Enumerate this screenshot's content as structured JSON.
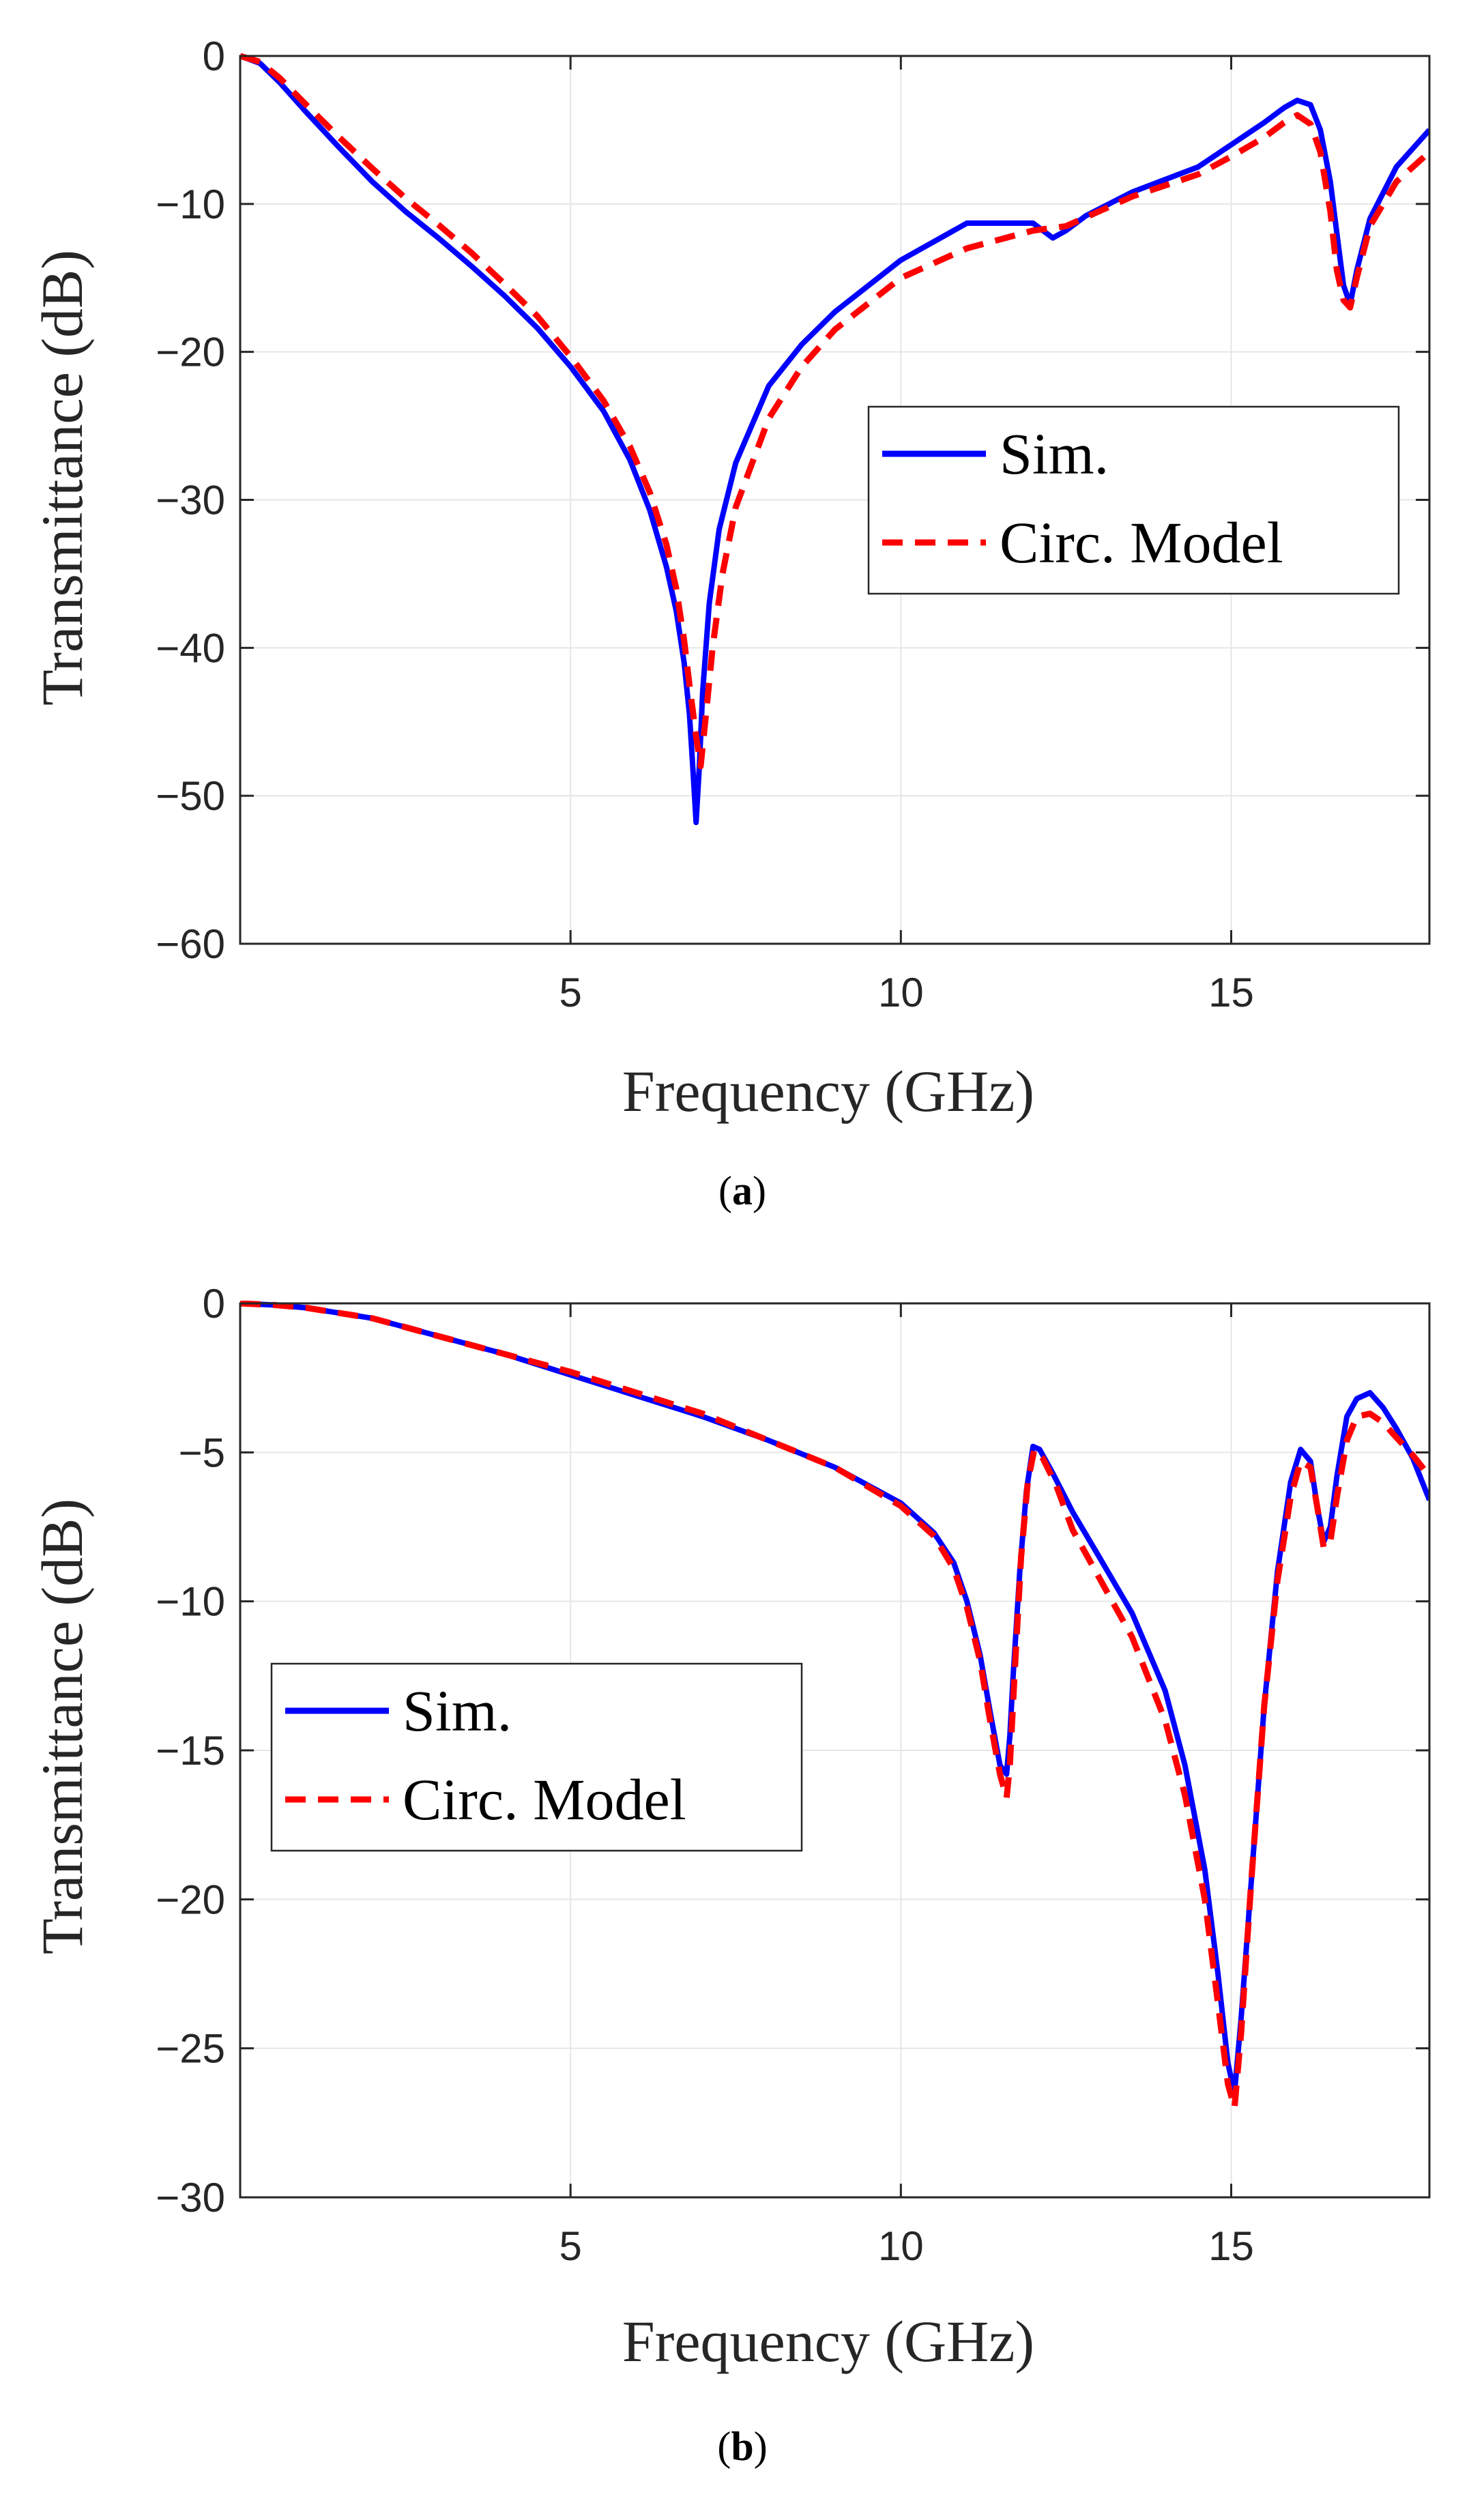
{
  "colors": {
    "sim": "#0000ff",
    "model": "#ff0000",
    "grid": "#e6e6e6",
    "axis": "#262626"
  },
  "chart_data": [
    {
      "type": "line",
      "panel": "(a)",
      "panel_letter": "a",
      "xlabel": "Frequency (GHz)",
      "ylabel": "Transmittance (dB)",
      "xlim": [
        0,
        18
      ],
      "ylim": [
        -60,
        0
      ],
      "xticks": [
        5,
        10,
        15
      ],
      "yticks": [
        0,
        -10,
        -20,
        -30,
        -40,
        -50,
        -60
      ],
      "grid": true,
      "legend_position": "center-right",
      "series": [
        {
          "name": "Sim.",
          "style": "solid",
          "x": [
            0,
            0.3,
            0.6,
            1,
            1.5,
            2,
            2.5,
            3,
            3.5,
            4,
            4.5,
            5,
            5.5,
            5.9,
            6.2,
            6.45,
            6.6,
            6.72,
            6.8,
            6.85,
            6.9,
            6.95,
            7.0,
            7.1,
            7.25,
            7.5,
            8,
            8.5,
            9,
            10,
            11,
            12,
            12.3,
            12.5,
            12.8,
            13.5,
            14.5,
            15,
            15.5,
            15.8,
            16.0,
            16.2,
            16.35,
            16.5,
            16.6,
            16.7,
            16.8,
            16.9,
            17.1,
            17.5,
            18
          ],
          "values": [
            0,
            -0.5,
            -1.8,
            -3.8,
            -6.2,
            -8.5,
            -10.5,
            -12.3,
            -14.2,
            -16.2,
            -18.4,
            -21.0,
            -24.0,
            -27.3,
            -30.7,
            -34.5,
            -37.5,
            -41.0,
            -44.5,
            -48.0,
            -51.8,
            -48.0,
            -43.0,
            -37.0,
            -32.0,
            -27.5,
            -22.3,
            -19.5,
            -17.3,
            -13.8,
            -11.3,
            -11.3,
            -12.3,
            -11.8,
            -10.8,
            -9.2,
            -7.5,
            -6.0,
            -4.5,
            -3.5,
            -3.0,
            -3.3,
            -5.0,
            -8.5,
            -12.0,
            -15.5,
            -16.8,
            -14.5,
            -11.0,
            -7.5,
            -5.0
          ]
        },
        {
          "name": "Circ. Model",
          "style": "dashed",
          "x": [
            0,
            0.3,
            0.6,
            1,
            1.5,
            2,
            2.5,
            3,
            3.5,
            4,
            4.5,
            5,
            5.5,
            5.9,
            6.2,
            6.45,
            6.6,
            6.72,
            6.8,
            6.9,
            6.97,
            7.05,
            7.15,
            7.3,
            7.5,
            8,
            8.5,
            9,
            10,
            11,
            12,
            12.5,
            13,
            13.5,
            14.5,
            15,
            15.5,
            15.8,
            16.0,
            16.2,
            16.35,
            16.5,
            16.6,
            16.7,
            16.8,
            16.9,
            17.1,
            17.5,
            18
          ],
          "values": [
            0,
            -0.4,
            -1.5,
            -3.3,
            -5.5,
            -7.6,
            -9.6,
            -11.4,
            -13.3,
            -15.4,
            -17.6,
            -20.3,
            -23.3,
            -26.4,
            -29.5,
            -33.0,
            -36.0,
            -39.5,
            -42.5,
            -46.0,
            -48.0,
            -44.5,
            -40.0,
            -35.0,
            -30.5,
            -24.5,
            -21.0,
            -18.5,
            -15.0,
            -13.0,
            -11.8,
            -11.5,
            -10.5,
            -9.5,
            -8.0,
            -6.8,
            -5.5,
            -4.5,
            -4.0,
            -4.6,
            -6.5,
            -10.5,
            -14.5,
            -16.5,
            -17.0,
            -15.0,
            -11.5,
            -8.5,
            -6.5
          ]
        }
      ]
    },
    {
      "type": "line",
      "panel": "(b)",
      "panel_letter": "b",
      "xlabel": "Frequency (GHz)",
      "ylabel": "Transmittance (dB)",
      "xlim": [
        0,
        18
      ],
      "ylim": [
        -30,
        0
      ],
      "xticks": [
        5,
        10,
        15
      ],
      "yticks": [
        0,
        -5,
        -10,
        -15,
        -20,
        -25,
        -30
      ],
      "grid": true,
      "legend_position": "center-left",
      "series": [
        {
          "name": "Sim.",
          "style": "solid",
          "x": [
            0,
            0.5,
            1,
            2,
            3,
            4,
            5,
            6,
            7,
            8,
            9,
            10,
            10.5,
            10.8,
            11.0,
            11.2,
            11.35,
            11.5,
            11.6,
            11.65,
            11.7,
            11.8,
            11.9,
            12.0,
            12.1,
            12.3,
            12.6,
            13.0,
            13.5,
            14.0,
            14.3,
            14.6,
            14.8,
            14.95,
            15.05,
            15.15,
            15.3,
            15.5,
            15.7,
            15.9,
            16.05,
            16.2,
            16.3,
            16.4,
            16.5,
            16.6,
            16.75,
            16.9,
            17.1,
            17.3,
            17.5,
            17.75,
            18
          ],
          "values": [
            0,
            -0.05,
            -0.15,
            -0.5,
            -1.1,
            -1.7,
            -2.4,
            -3.1,
            -3.8,
            -4.6,
            -5.5,
            -6.7,
            -7.7,
            -8.7,
            -10.0,
            -11.8,
            -13.7,
            -15.5,
            -15.8,
            -14.5,
            -12.5,
            -9.0,
            -6.3,
            -4.8,
            -4.9,
            -5.7,
            -7.0,
            -8.5,
            -10.4,
            -13.0,
            -15.5,
            -19.0,
            -22.5,
            -25.5,
            -26.5,
            -24.0,
            -19.5,
            -13.5,
            -9.0,
            -6.0,
            -4.9,
            -5.3,
            -6.8,
            -8.0,
            -7.5,
            -5.8,
            -3.8,
            -3.2,
            -3.0,
            -3.5,
            -4.2,
            -5.2,
            -6.6
          ]
        },
        {
          "name": "Circ. Model",
          "style": "dashed",
          "x": [
            0,
            0.5,
            1,
            2,
            3,
            4,
            5,
            6,
            7,
            8,
            9,
            10,
            10.5,
            10.8,
            11.0,
            11.2,
            11.35,
            11.5,
            11.6,
            11.65,
            11.72,
            11.82,
            11.92,
            12.02,
            12.15,
            12.35,
            12.6,
            13.0,
            13.5,
            14.0,
            14.3,
            14.6,
            14.8,
            14.95,
            15.05,
            15.15,
            15.3,
            15.5,
            15.7,
            15.9,
            16.05,
            16.2,
            16.3,
            16.4,
            16.5,
            16.6,
            16.75,
            16.9,
            17.1,
            17.3,
            17.5,
            17.75,
            18
          ],
          "values": [
            0,
            -0.05,
            -0.15,
            -0.5,
            -1.1,
            -1.7,
            -2.3,
            -3.0,
            -3.7,
            -4.6,
            -5.5,
            -6.8,
            -7.8,
            -8.9,
            -10.2,
            -12.0,
            -14.0,
            -15.8,
            -16.6,
            -15.5,
            -12.5,
            -8.5,
            -6.0,
            -4.9,
            -5.2,
            -6.1,
            -7.6,
            -9.2,
            -11.2,
            -14.0,
            -16.5,
            -20.0,
            -23.5,
            -26.2,
            -27.0,
            -24.5,
            -19.5,
            -13.5,
            -9.3,
            -6.5,
            -5.3,
            -5.5,
            -6.8,
            -8.2,
            -8.0,
            -6.5,
            -4.6,
            -3.8,
            -3.7,
            -4.0,
            -4.5,
            -5.1,
            -5.8
          ]
        }
      ]
    }
  ]
}
